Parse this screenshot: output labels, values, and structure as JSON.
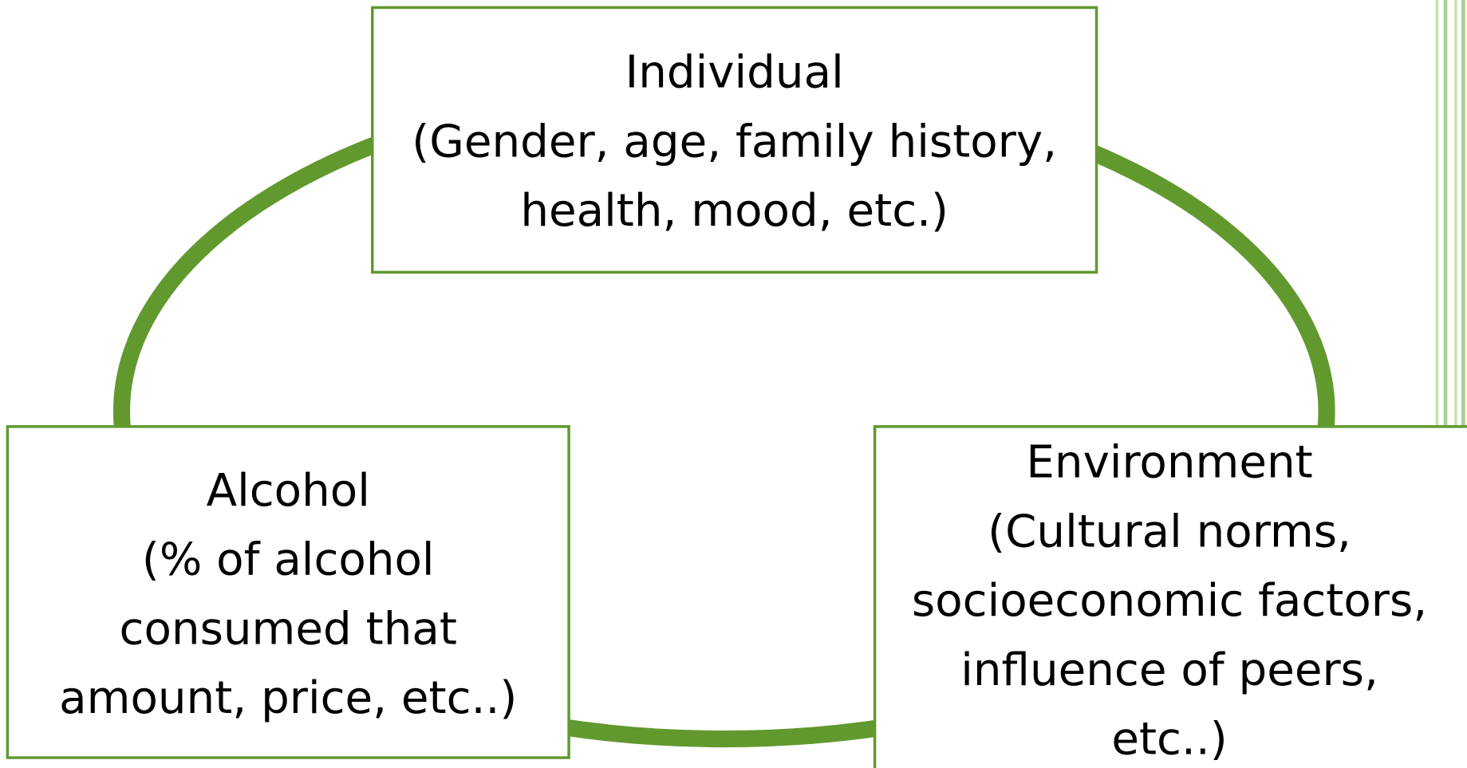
{
  "nodes": [
    {
      "lines": [
        "Individual",
        "(Gender, age, family history,",
        "health, mood, etc.)"
      ]
    },
    {
      "lines": [
        "Alcohol",
        "(% of alcohol",
        "consumed that",
        "amount, price, etc..)"
      ]
    },
    {
      "lines": [
        "Environment",
        "(Cultural norms,",
        "socioeconomic factors,",
        "influence of peers,",
        "etc..)"
      ]
    }
  ]
}
